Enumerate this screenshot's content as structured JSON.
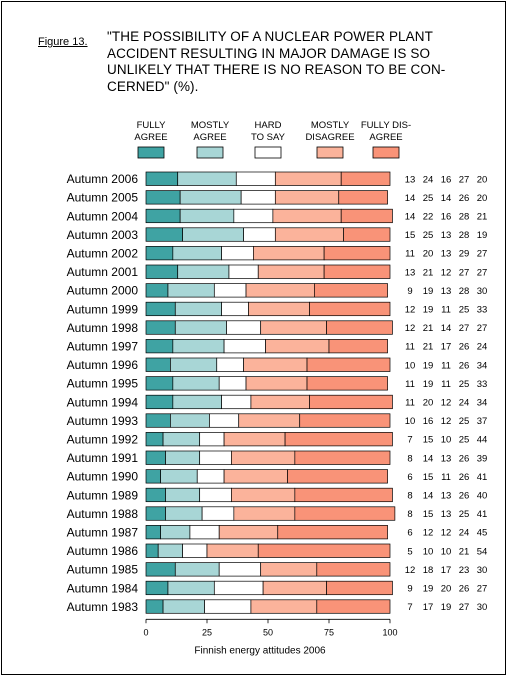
{
  "figure_label": "Figure 13.",
  "title": "\"THE POSSIBILITY OF A NUCLEAR POWER PLANT ACCIDENT RESULTING IN MAJOR DAMAGE IS SO UNLIKELY THAT THERE IS NO REASON TO BE CON- CERNED\" (%).",
  "title_lines": [
    "\"THE POSSIBILITY OF A NUCLEAR POWER PLANT",
    "ACCIDENT RESULTING IN MAJOR DAMAGE IS SO",
    "UNLIKELY THAT THERE IS NO REASON TO BE CON-",
    "CERNED\" (%)."
  ],
  "source": "Finnish energy attitudes 2006",
  "colors": {
    "Fully agree": "#3fa3a3",
    "Mostly agree": "#a8d6d6",
    "Hard to say": "#ffffff",
    "Mostly disagree": "#fbb39b",
    "Fully disagree": "#f99378"
  },
  "chart_data": {
    "type": "bar",
    "orientation": "horizontal",
    "stacked": true,
    "xlim": [
      0,
      100
    ],
    "xticks": [
      0,
      25,
      50,
      75,
      100
    ],
    "legend_position": "top",
    "categories": [
      "Autumn 2006",
      "Autumn 2005",
      "Autumn 2004",
      "Autumn 2003",
      "Autumn 2002",
      "Autumn 2001",
      "Autumn 2000",
      "Autumn 1999",
      "Autumn 1998",
      "Autumn 1997",
      "Autumn 1996",
      "Autumn 1995",
      "Autumn 1994",
      "Autumn 1993",
      "Autumn 1992",
      "Autumn 1991",
      "Autumn 1990",
      "Autumn 1989",
      "Autumn 1988",
      "Autumn 1987",
      "Autumn 1986",
      "Autumn 1985",
      "Autumn 1984",
      "Autumn 1983"
    ],
    "series": [
      {
        "name": "Fully agree",
        "legend_lines": [
          "FULLY",
          "AGREE"
        ],
        "values": [
          13,
          14,
          14,
          15,
          11,
          13,
          9,
          12,
          12,
          11,
          10,
          11,
          11,
          10,
          7,
          8,
          6,
          8,
          8,
          6,
          5,
          12,
          9,
          7
        ]
      },
      {
        "name": "Mostly agree",
        "legend_lines": [
          "MOSTLY",
          "AGREE"
        ],
        "values": [
          24,
          25,
          22,
          25,
          20,
          21,
          19,
          19,
          21,
          21,
          19,
          19,
          20,
          16,
          15,
          14,
          15,
          14,
          15,
          12,
          10,
          18,
          19,
          17
        ]
      },
      {
        "name": "Hard to say",
        "legend_lines": [
          "HARD",
          "TO SAY"
        ],
        "values": [
          16,
          14,
          16,
          13,
          13,
          12,
          13,
          11,
          14,
          17,
          11,
          11,
          12,
          12,
          10,
          13,
          11,
          13,
          13,
          12,
          10,
          17,
          20,
          19
        ]
      },
      {
        "name": "Mostly disagree",
        "legend_lines": [
          "MOSTLY",
          "DISAGREE"
        ],
        "values": [
          27,
          26,
          28,
          28,
          29,
          27,
          28,
          25,
          27,
          26,
          26,
          25,
          24,
          25,
          25,
          26,
          26,
          26,
          25,
          24,
          21,
          23,
          26,
          27
        ]
      },
      {
        "name": "Fully disagree",
        "legend_lines": [
          "FULLY DIS-",
          "AGREE"
        ],
        "values": [
          20,
          20,
          21,
          19,
          27,
          27,
          30,
          33,
          27,
          24,
          34,
          33,
          34,
          37,
          44,
          39,
          41,
          40,
          41,
          45,
          54,
          30,
          27,
          30
        ]
      }
    ]
  }
}
